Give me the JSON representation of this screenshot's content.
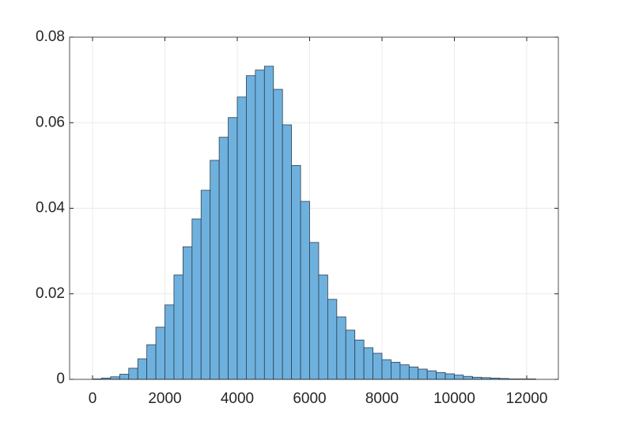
{
  "chart_data": {
    "type": "histogram",
    "bins": [
      0,
      250,
      500,
      750,
      1000,
      1250,
      1500,
      1750,
      2000,
      2250,
      2500,
      2750,
      3000,
      3250,
      3500,
      3750,
      4000,
      4250,
      4500,
      4750,
      5000,
      5250,
      5500,
      5750,
      6000,
      6250,
      6500,
      6750,
      7000,
      7250,
      7500,
      7750,
      8000,
      8250,
      8500,
      8750,
      9000,
      9250,
      9500,
      9750,
      10000,
      10250,
      10500,
      10750,
      11000,
      11250,
      11500,
      11750,
      12000,
      12250
    ],
    "values": [
      0.0001,
      0.0003,
      0.0006,
      0.0012,
      0.0026,
      0.0048,
      0.0081,
      0.0122,
      0.0174,
      0.0244,
      0.031,
      0.0375,
      0.0442,
      0.0512,
      0.0566,
      0.0612,
      0.066,
      0.071,
      0.0723,
      0.0732,
      0.0678,
      0.0595,
      0.05,
      0.0416,
      0.032,
      0.0244,
      0.0187,
      0.0146,
      0.0115,
      0.0092,
      0.0074,
      0.0061,
      0.0046,
      0.004,
      0.0034,
      0.0029,
      0.0024,
      0.002,
      0.0016,
      0.0013,
      0.001,
      0.0007,
      0.0005,
      0.0004,
      0.0003,
      0.0002,
      0.0001,
      0.0001,
      0.0001
    ],
    "color": "#6fb1de",
    "edge_color": "#2b3f50",
    "xlim": [
      -634,
      12874
    ],
    "ylim": [
      0,
      0.08
    ],
    "xticks": [
      0,
      2000,
      4000,
      6000,
      8000,
      10000,
      12000
    ],
    "yticks": [
      0,
      0.02,
      0.04,
      0.06,
      0.08
    ],
    "grid": true
  }
}
